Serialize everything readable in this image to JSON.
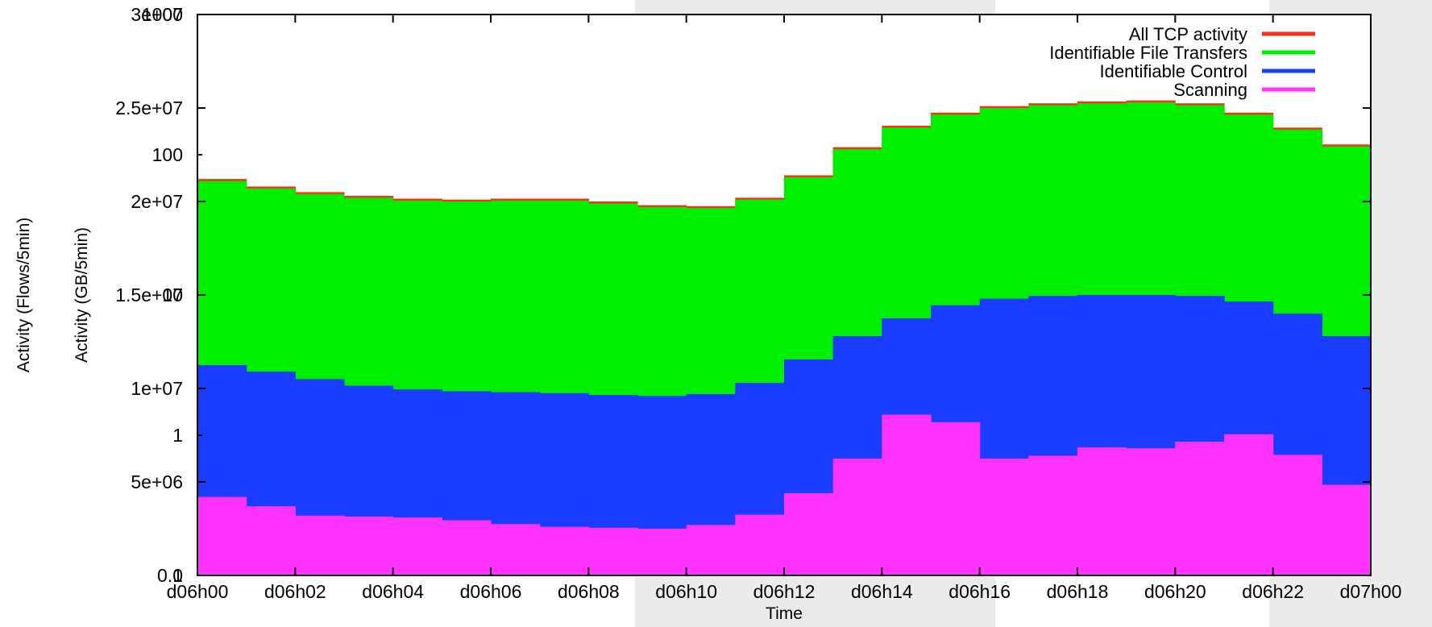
{
  "chart_data": {
    "type": "bar",
    "xlabel": "Time",
    "ylabel_left": "Activity (Flows/5min)",
    "ylabel_right": "Activity (GB/5min)",
    "ylim": [
      0,
      30000000
    ],
    "y_ticks": [
      {
        "value": 0,
        "label": "0"
      },
      {
        "value": 5000000,
        "label": "5e+06"
      },
      {
        "value": 10000000,
        "label": "1e+07"
      },
      {
        "value": 15000000,
        "label": "1.5e+07"
      },
      {
        "value": 20000000,
        "label": "2e+07"
      },
      {
        "value": 25000000,
        "label": "2.5e+07"
      },
      {
        "value": 30000000,
        "label": "3e+07"
      }
    ],
    "y2_ticks": [
      {
        "label": "0.1",
        "frac": 0.0
      },
      {
        "label": "1",
        "frac": 0.25
      },
      {
        "label": "10",
        "frac": 0.5
      },
      {
        "label": "100",
        "frac": 0.75
      },
      {
        "label": "1000",
        "frac": 1.0
      }
    ],
    "x_ticks": [
      "d06h00",
      "d06h02",
      "d06h04",
      "d06h06",
      "d06h08",
      "d06h10",
      "d06h12",
      "d06h14",
      "d06h16",
      "d06h18",
      "d06h20",
      "d06h22",
      "d07h00"
    ],
    "legend_position": "top-right",
    "series": [
      {
        "name": "All TCP activity",
        "color": "#ff2a1a",
        "hour": [
          0,
          1,
          2,
          3,
          4,
          5,
          6,
          7,
          8,
          9,
          10,
          11,
          12,
          13,
          14,
          15,
          16,
          17,
          18,
          19,
          20,
          21,
          22,
          23,
          24
        ],
        "values": [
          21400000,
          21000000,
          20600000,
          20400000,
          20200000,
          20100000,
          20100000,
          20200000,
          20100000,
          19900000,
          19700000,
          19800000,
          20600000,
          22200000,
          23600000,
          24500000,
          25000000,
          25200000,
          25300000,
          25400000,
          25400000,
          25100000,
          24400000,
          23500000,
          22600000
        ]
      },
      {
        "name": "Identifiable File Transfers",
        "color": "#00ee00",
        "hour": [
          0,
          1,
          2,
          3,
          4,
          5,
          6,
          7,
          8,
          9,
          10,
          11,
          12,
          13,
          14,
          15,
          16,
          17,
          18,
          19,
          20,
          21,
          22,
          23,
          24
        ],
        "values": [
          21300000,
          20900000,
          20500000,
          20300000,
          20100000,
          20000000,
          20000000,
          20100000,
          20000000,
          19800000,
          19600000,
          19700000,
          20500000,
          22100000,
          23500000,
          24400000,
          24900000,
          25100000,
          25200000,
          25300000,
          25300000,
          25000000,
          24300000,
          23400000,
          22500000
        ]
      },
      {
        "name": "Identifiable Control",
        "color": "#1a3cff",
        "hour": [
          0,
          1,
          2,
          3,
          4,
          5,
          6,
          7,
          8,
          9,
          10,
          11,
          12,
          13,
          14,
          15,
          16,
          17,
          18,
          19,
          20,
          21,
          22,
          23,
          24
        ],
        "values": [
          11400000,
          11100000,
          10700000,
          10300000,
          10000000,
          9900000,
          9800000,
          9800000,
          9700000,
          9600000,
          9600000,
          9800000,
          10800000,
          12300000,
          13300000,
          14200000,
          14700000,
          14900000,
          15000000,
          15000000,
          15000000,
          14900000,
          14400000,
          13600000,
          12000000
        ]
      },
      {
        "name": "Scanning",
        "color": "#ff33ff",
        "hour": [
          0,
          1,
          2,
          3,
          4,
          5,
          6,
          7,
          8,
          9,
          10,
          11,
          12,
          13,
          14,
          15,
          16,
          17,
          18,
          19,
          20,
          21,
          22,
          23,
          24
        ],
        "values": [
          4300000,
          4100000,
          3300000,
          3100000,
          3200000,
          3000000,
          2900000,
          2600000,
          2600000,
          2500000,
          2500000,
          2900000,
          3600000,
          5200000,
          7300000,
          9900000,
          6500000,
          6000000,
          6800000,
          6900000,
          6700000,
          7600000,
          7500000,
          5400000,
          4300000
        ]
      }
    ]
  }
}
